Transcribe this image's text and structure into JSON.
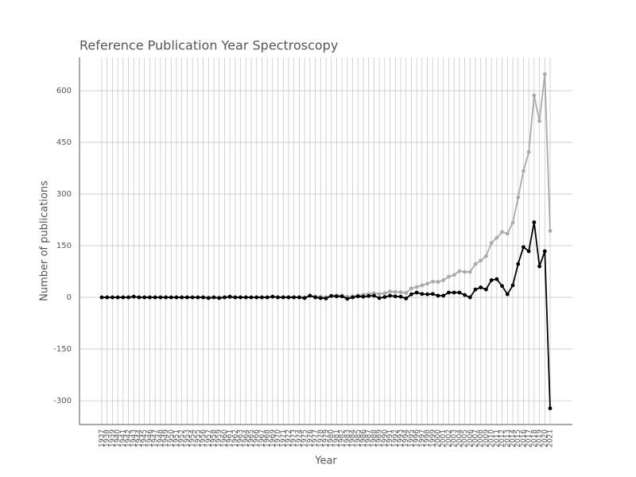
{
  "chart_data": {
    "type": "line",
    "title": "Reference Publication Year Spectroscopy",
    "xlabel": "Year",
    "ylabel": "Number of publications",
    "categories": [
      "1937",
      "1938",
      "1939",
      "1940",
      "1941",
      "1942",
      "1943",
      "1944",
      "1945",
      "1946",
      "1947",
      "1948",
      "1949",
      "1950",
      "1951",
      "1952",
      "1953",
      "1954",
      "1955",
      "1956",
      "1957",
      "1958",
      "1959",
      "1960",
      "1961",
      "1962",
      "1963",
      "1964",
      "1965",
      "1966",
      "1967",
      "1968",
      "1969",
      "1970",
      "1971",
      "1972",
      "1973",
      "1974",
      "1975",
      "1976",
      "1977",
      "1978",
      "1979",
      "1980",
      "1981",
      "1982",
      "1983",
      "1984",
      "1985",
      "1986",
      "1987",
      "1988",
      "1989",
      "1990",
      "1991",
      "1992",
      "1993",
      "1994",
      "1995",
      "1996",
      "1997",
      "1998",
      "1999",
      "2000",
      "2001",
      "2002",
      "2003",
      "2004",
      "2005",
      "2006",
      "2007",
      "2008",
      "2009",
      "2010",
      "2011",
      "2012",
      "2013",
      "2014",
      "2015",
      "2016",
      "2017",
      "2018",
      "2019",
      "2020",
      "2021"
    ],
    "series": [
      {
        "color": "#aaaaaa",
        "values": [
          0,
          0,
          0,
          0,
          0,
          0,
          2,
          0,
          0,
          0,
          0,
          0,
          0,
          0,
          0,
          0,
          0,
          0,
          0,
          0,
          0,
          0,
          0,
          0,
          0,
          0,
          1,
          0,
          0,
          0,
          0,
          0,
          2,
          1,
          1,
          1,
          1,
          1,
          0,
          5,
          3,
          2,
          1,
          5,
          6,
          5,
          2,
          3,
          6,
          8,
          10,
          12,
          10,
          12,
          17,
          16,
          15,
          13,
          26,
          30,
          35,
          40,
          46,
          45,
          50,
          60,
          65,
          76,
          74,
          74,
          97,
          107,
          120,
          158,
          173,
          190,
          185,
          217,
          290,
          367,
          422,
          586,
          512,
          648,
          193
        ]
      },
      {
        "color": "#000000",
        "values": [
          0,
          0,
          0,
          0,
          0,
          0,
          2,
          0,
          0,
          0,
          0,
          0,
          0,
          0,
          0,
          0,
          0,
          0,
          0,
          0,
          -2,
          0,
          -2,
          0,
          2,
          0,
          0,
          0,
          0,
          0,
          0,
          0,
          2,
          0,
          0,
          0,
          0,
          0,
          -2,
          5,
          0,
          -2,
          -3,
          4,
          3,
          3,
          -4,
          0,
          3,
          2,
          4,
          5,
          -2,
          1,
          5,
          3,
          2,
          -3,
          9,
          14,
          10,
          9,
          10,
          5,
          5,
          14,
          14,
          14,
          7,
          0,
          23,
          29,
          23,
          50,
          53,
          33,
          9,
          35,
          97,
          146,
          134,
          218,
          90,
          134,
          -322
        ]
      }
    ],
    "ylim": [
      -369,
      697
    ],
    "yticks": [
      -300,
      -150,
      0,
      150,
      300,
      450,
      600
    ],
    "grid": true
  }
}
